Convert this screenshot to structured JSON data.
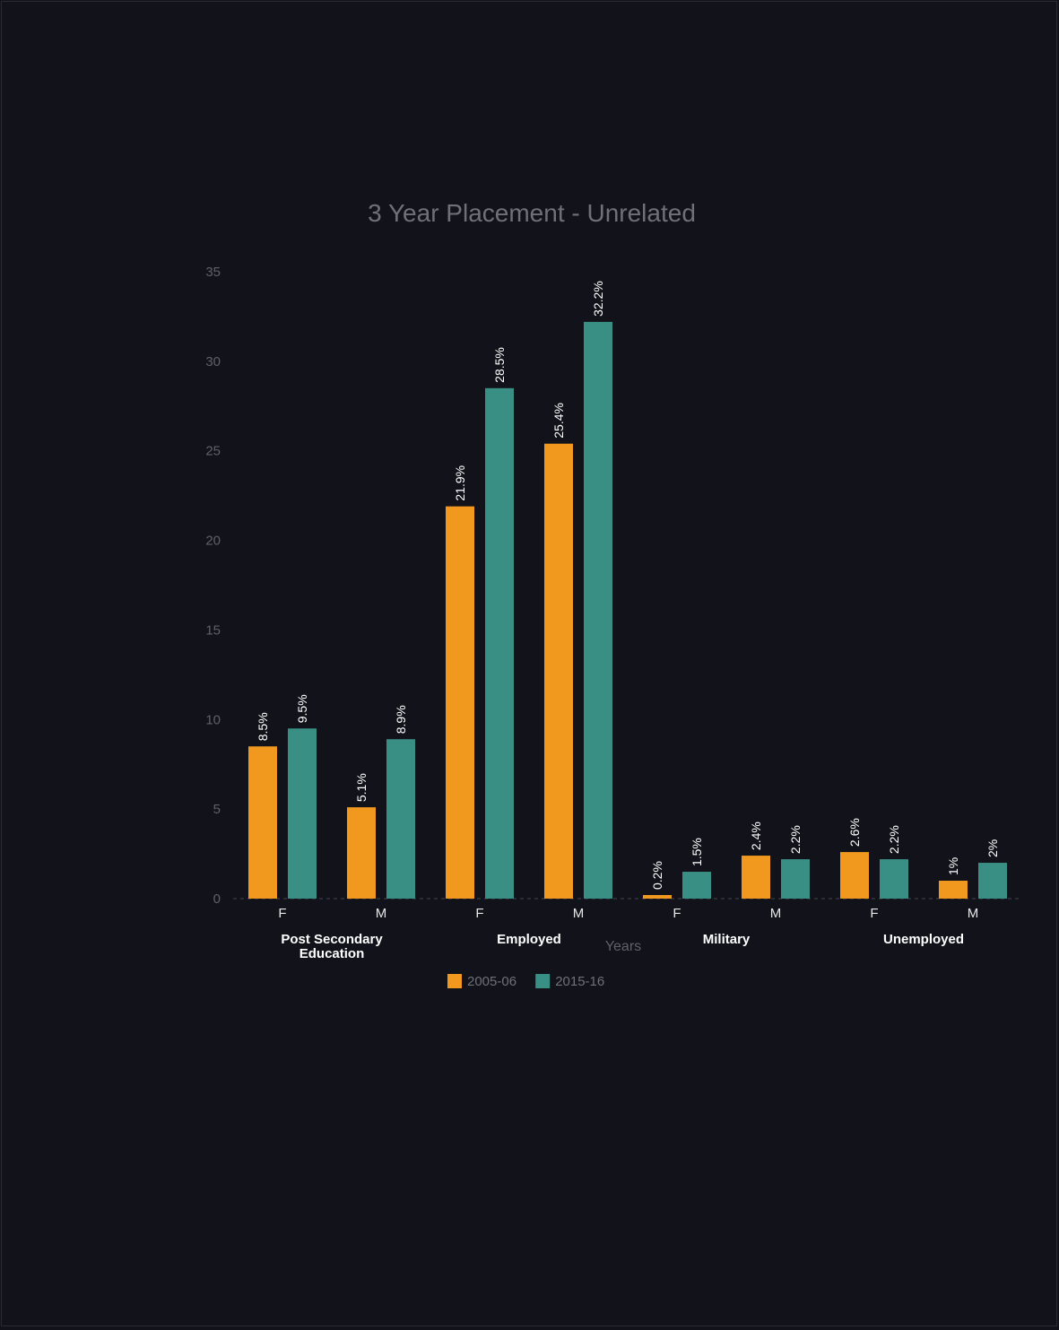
{
  "chart_data": {
    "type": "bar",
    "title": "3 Year Placement - Unrelated",
    "xlabel": "Years",
    "ylabel": "",
    "ylim": [
      0,
      35
    ],
    "yticks": [
      0,
      5,
      10,
      15,
      20,
      25,
      30,
      35
    ],
    "groups": [
      {
        "label": "Post Secondary Education",
        "lines": [
          "Post Secondary",
          "Education"
        ],
        "sub": [
          "F",
          "M"
        ]
      },
      {
        "label": "Employed",
        "lines": [
          "Employed"
        ],
        "sub": [
          "F",
          "M"
        ]
      },
      {
        "label": "Military",
        "lines": [
          "Military"
        ],
        "sub": [
          "F",
          "M"
        ]
      },
      {
        "label": "Unemployed",
        "lines": [
          "Unemployed"
        ],
        "sub": [
          "F",
          "M"
        ]
      }
    ],
    "series": [
      {
        "name": "2005-06",
        "color": "#f0991e",
        "values": [
          8.5,
          5.1,
          21.9,
          25.4,
          0.2,
          2.4,
          2.6,
          1
        ],
        "labels": [
          "8.5%",
          "5.1%",
          "21.9%",
          "25.4%",
          "0.2%",
          "2.4%",
          "2.6%",
          "1%"
        ]
      },
      {
        "name": "2015-16",
        "color": "#3a8f85",
        "values": [
          9.5,
          8.9,
          28.5,
          32.2,
          1.5,
          2.2,
          2.2,
          2
        ],
        "labels": [
          "9.5%",
          "8.9%",
          "28.5%",
          "32.2%",
          "1.5%",
          "2.2%",
          "2.2%",
          "2%"
        ]
      }
    ],
    "legend_position": "bottom-center",
    "grid": false
  }
}
